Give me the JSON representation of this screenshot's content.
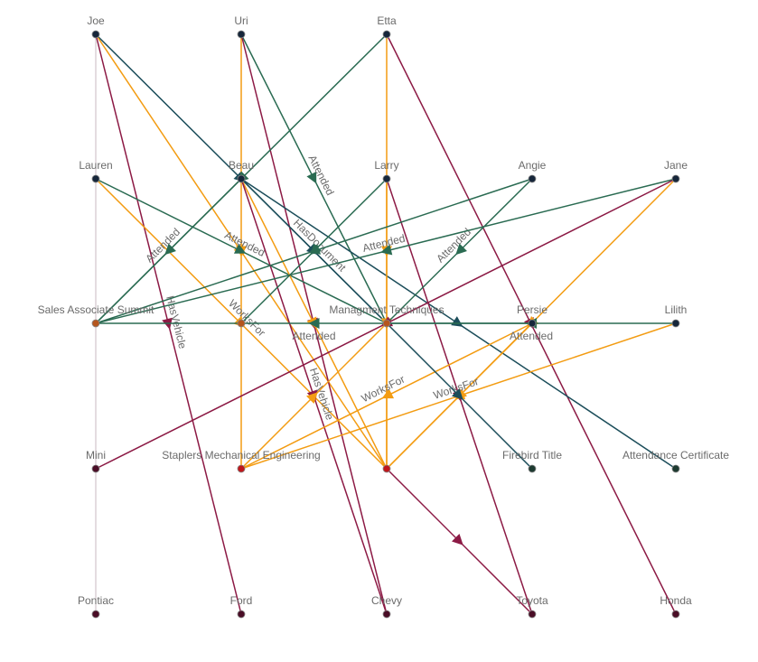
{
  "colors": {
    "Attended": "#2a6b52",
    "WorksFor": "#f39c12",
    "HasVehicle": "#8c1a45",
    "HasDocument": "#1b4d5a",
    "plain": "#c8b8c0"
  },
  "nodes": [
    {
      "id": "joe",
      "label": "Joe",
      "color": "#16263a"
    },
    {
      "id": "uri",
      "label": "Uri",
      "color": "#16263a"
    },
    {
      "id": "etta",
      "label": "Etta",
      "color": "#16263a"
    },
    {
      "id": "lauren",
      "label": "Lauren",
      "color": "#16263a"
    },
    {
      "id": "beau",
      "label": "Beau",
      "color": "#16263a"
    },
    {
      "id": "larry",
      "label": "Larry",
      "color": "#16263a"
    },
    {
      "id": "angie",
      "label": "Angie",
      "color": "#16263a"
    },
    {
      "id": "jane",
      "label": "Jane",
      "color": "#16263a"
    },
    {
      "id": "sales",
      "label": "Sales Associate Summit",
      "color": "#b5561e"
    },
    {
      "id": "training",
      "label": "",
      "color": "#b5561e"
    },
    {
      "id": "mgmt",
      "label": "Managment Techniques",
      "color": "#b5561e"
    },
    {
      "id": "persie",
      "label": "Persie",
      "color": "#16263a"
    },
    {
      "id": "lilith",
      "label": "Lilith",
      "color": "#16263a"
    },
    {
      "id": "mini",
      "label": "Mini",
      "color": "#4a0d26"
    },
    {
      "id": "staplers",
      "label": "Staplers Mechanical Engineering",
      "color": "#c0161b"
    },
    {
      "id": "mecheng",
      "label": "",
      "color": "#c0161b"
    },
    {
      "id": "firebird",
      "label": "Firebird Title",
      "color": "#1d3a30"
    },
    {
      "id": "attcert",
      "label": "Attendance Certificate",
      "color": "#1d3a30"
    },
    {
      "id": "pontiac",
      "label": "Pontiac",
      "color": "#4a0d26"
    },
    {
      "id": "ford",
      "label": "Ford",
      "color": "#4a0d26"
    },
    {
      "id": "chevy",
      "label": "Chevy",
      "color": "#4a0d26"
    },
    {
      "id": "toyota",
      "label": "Toyota",
      "color": "#4a0d26"
    },
    {
      "id": "honda",
      "label": "Honda",
      "color": "#4a0d26"
    }
  ],
  "edges": [
    {
      "from": "joe",
      "to": "pontiac",
      "type": "plain",
      "label": ""
    },
    {
      "from": "joe",
      "to": "mgmt",
      "type": "HasDocument",
      "label": ""
    },
    {
      "from": "joe",
      "to": "ford",
      "type": "HasVehicle",
      "label": "HasVehicle"
    },
    {
      "from": "joe",
      "to": "mecheng",
      "type": "WorksFor",
      "label": ""
    },
    {
      "from": "uri",
      "to": "mgmt",
      "type": "Attended",
      "label": "Attended"
    },
    {
      "from": "uri",
      "to": "staplers",
      "type": "WorksFor",
      "label": ""
    },
    {
      "from": "uri",
      "to": "chevy",
      "type": "HasVehicle",
      "label": ""
    },
    {
      "from": "etta",
      "to": "sales",
      "type": "Attended",
      "label": ""
    },
    {
      "from": "etta",
      "to": "mecheng",
      "type": "WorksFor",
      "label": ""
    },
    {
      "from": "etta",
      "to": "honda",
      "type": "HasVehicle",
      "label": ""
    },
    {
      "from": "lauren",
      "to": "mgmt",
      "type": "Attended",
      "label": "Attended"
    },
    {
      "from": "lauren",
      "to": "mecheng",
      "type": "WorksFor",
      "label": "WorksFor"
    },
    {
      "from": "beau",
      "to": "sales",
      "type": "Attended",
      "label": "Attended"
    },
    {
      "from": "beau",
      "to": "mgmt",
      "type": "HasDocument",
      "label": "HasDocument"
    },
    {
      "from": "beau",
      "to": "attcert",
      "type": "HasDocument",
      "label": ""
    },
    {
      "from": "beau",
      "to": "mecheng",
      "type": "WorksFor",
      "label": ""
    },
    {
      "from": "beau",
      "to": "chevy",
      "type": "HasVehicle",
      "label": "HasVehicle"
    },
    {
      "from": "larry",
      "to": "training",
      "type": "Attended",
      "label": ""
    },
    {
      "from": "larry",
      "to": "mecheng",
      "type": "WorksFor",
      "label": ""
    },
    {
      "from": "larry",
      "to": "toyota",
      "type": "HasVehicle",
      "label": ""
    },
    {
      "from": "angie",
      "to": "mgmt",
      "type": "Attended",
      "label": "Attended"
    },
    {
      "from": "angie",
      "to": "sales",
      "type": "Attended",
      "label": ""
    },
    {
      "from": "jane",
      "to": "sales",
      "type": "Attended",
      "label": "Attended"
    },
    {
      "from": "jane",
      "to": "mecheng",
      "type": "WorksFor",
      "label": ""
    },
    {
      "from": "jane",
      "to": "mini",
      "type": "HasVehicle",
      "label": ""
    },
    {
      "from": "persie",
      "to": "sales",
      "type": "Attended",
      "label": "Attended"
    },
    {
      "from": "persie",
      "to": "staplers",
      "type": "WorksFor",
      "label": "WorksFor"
    },
    {
      "from": "persie",
      "to": "mecheng",
      "type": "WorksFor",
      "label": ""
    },
    {
      "from": "lilith",
      "to": "mgmt",
      "type": "Attended",
      "label": "Attended"
    },
    {
      "from": "lilith",
      "to": "staplers",
      "type": "WorksFor",
      "label": "WorksFor"
    },
    {
      "from": "staplers",
      "to": "mgmt",
      "type": "WorksFor",
      "label": ""
    },
    {
      "from": "mgmt",
      "to": "firebird",
      "type": "HasDocument",
      "label": ""
    },
    {
      "from": "mecheng",
      "to": "toyota",
      "type": "HasVehicle",
      "label": ""
    }
  ]
}
